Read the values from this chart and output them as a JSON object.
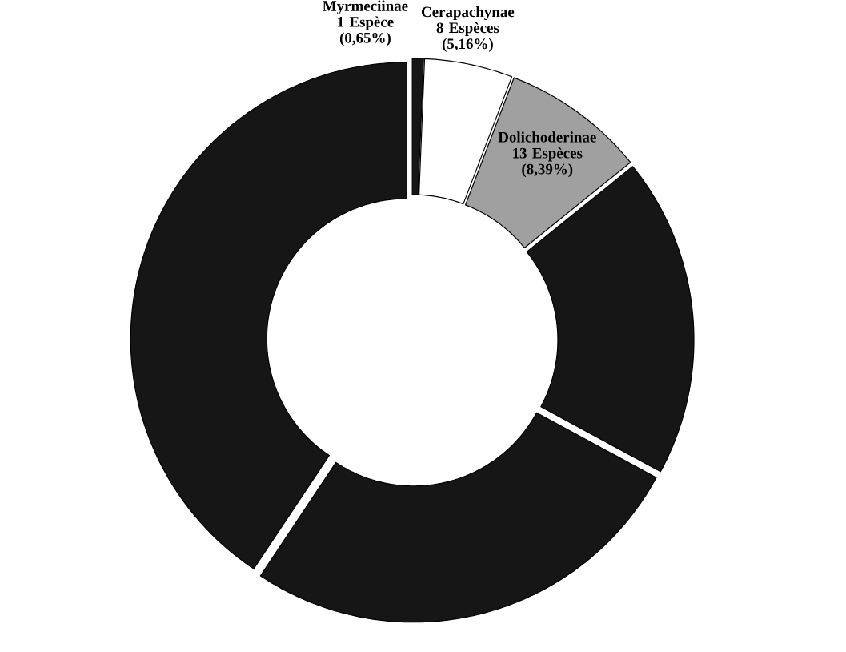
{
  "chart_data": {
    "type": "donut",
    "categories": [
      "Myrmeciinae",
      "Cerapachynae",
      "Dolichoderinae",
      null,
      null,
      null
    ],
    "values": [
      0.65,
      5.16,
      8.39,
      18.71,
      26.45,
      40.65
    ],
    "value_labels": [
      "1 Espèce (0,65%)",
      "8 Espèces (5,16%)",
      "13 Espèces (8,39%)",
      null,
      null,
      null
    ],
    "colors": [
      "#161616",
      "#ffffff",
      "#a0a0a0",
      "#161616",
      "#161616",
      "#161616"
    ]
  }
}
